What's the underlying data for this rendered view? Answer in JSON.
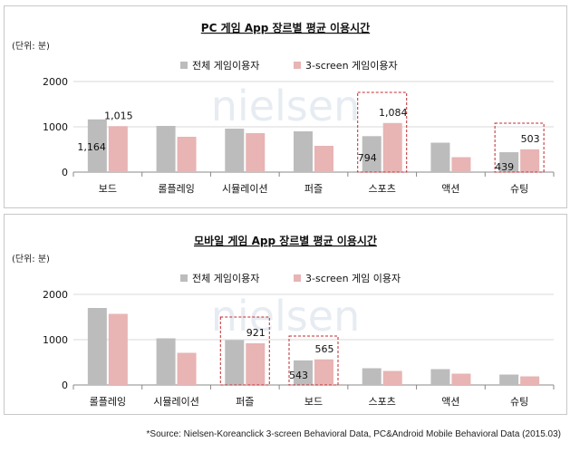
{
  "colors": {
    "overall": "#bcbcbc",
    "screen3": "#e8b4b4",
    "highlight": "#c0282d",
    "grid": "#d9d9d9",
    "watermark": "#e6ecf2"
  },
  "watermark": "nielsen",
  "source": "*Source: Nielsen-Koreanclick 3-screen Behavioral Data, PC&Android Mobile Behavioral Data (2015.03)",
  "chart_data": [
    {
      "type": "bar",
      "title": "PC 게임 App 장르별 평균 이용시간",
      "unit_label": "(단위: 분)",
      "categories": [
        "보드",
        "롤플레잉",
        "시뮬레이션",
        "퍼즐",
        "스포츠",
        "액션",
        "슈팅"
      ],
      "series": [
        {
          "name": "전체 게임이용자",
          "values": [
            1164,
            1020,
            960,
            900,
            794,
            650,
            439
          ]
        },
        {
          "name": "3-screen 게임이용자",
          "values": [
            1015,
            780,
            860,
            580,
            1084,
            330,
            503
          ]
        }
      ],
      "data_labels": [
        {
          "index": 0,
          "series": 0,
          "text": "1,164"
        },
        {
          "index": 0,
          "series": 1,
          "text": "1,015"
        },
        {
          "index": 4,
          "series": 0,
          "text": "794"
        },
        {
          "index": 4,
          "series": 1,
          "text": "1,084"
        },
        {
          "index": 6,
          "series": 0,
          "text": "439"
        },
        {
          "index": 6,
          "series": 1,
          "text": "503"
        }
      ],
      "highlight": [
        4,
        6
      ],
      "yticks": [
        "0",
        "1000",
        "2000"
      ],
      "ylim": [
        0,
        2000
      ],
      "grid": true,
      "legend": "top-center"
    },
    {
      "type": "bar",
      "title": "모바일 게임 App 장르별 평균 이용시간",
      "unit_label": "(단위: 분)",
      "categories": [
        "롤플레잉",
        "시뮬레이션",
        "퍼즐",
        "보드",
        "스포츠",
        "액션",
        "슈팅"
      ],
      "series": [
        {
          "name": "전체 게임이용자",
          "values": [
            1700,
            1030,
            990,
            543,
            370,
            350,
            230
          ]
        },
        {
          "name": "3-screen 게임 이용자",
          "values": [
            1570,
            710,
            921,
            565,
            310,
            250,
            190
          ]
        }
      ],
      "data_labels": [
        {
          "index": 2,
          "series": 1,
          "text": "921"
        },
        {
          "index": 3,
          "series": 0,
          "text": "543"
        },
        {
          "index": 3,
          "series": 1,
          "text": "565"
        }
      ],
      "highlight": [
        2,
        3
      ],
      "yticks": [
        "0",
        "1000",
        "2000"
      ],
      "ylim": [
        0,
        2000
      ],
      "grid": true,
      "legend": "top-center"
    }
  ]
}
